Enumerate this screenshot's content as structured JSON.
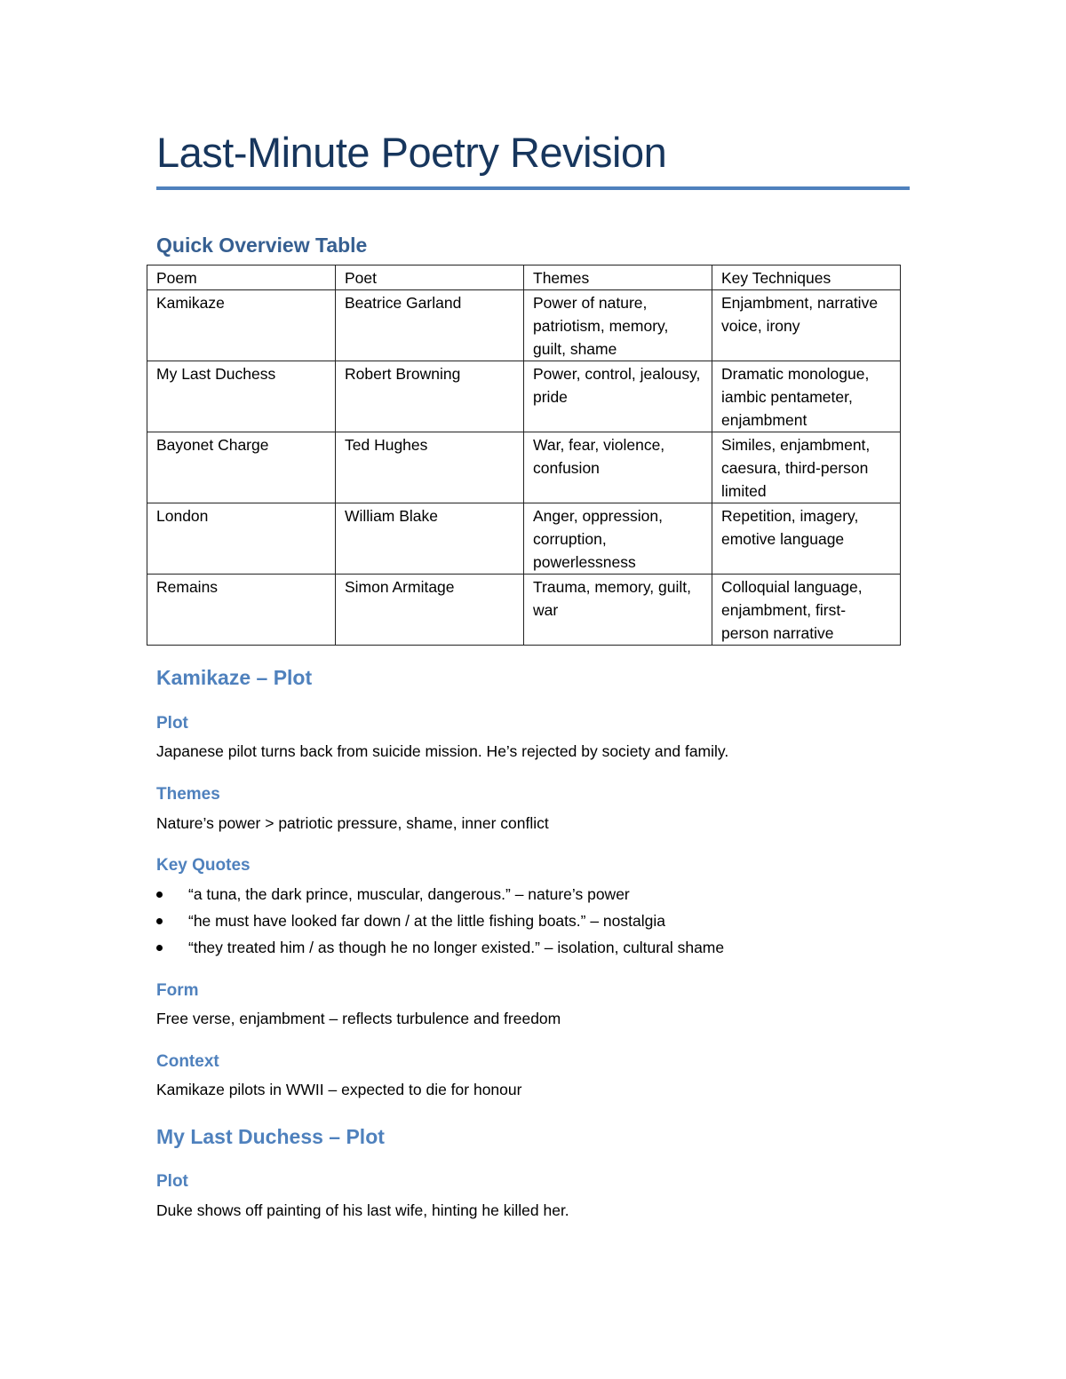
{
  "title": "Last-Minute Poetry Revision",
  "overview": {
    "heading": "Quick Overview Table",
    "columns": [
      "Poem",
      "Poet",
      "Themes",
      "Key Techniques"
    ],
    "rows": [
      [
        "Kamikaze",
        "Beatrice Garland",
        "Power of nature, patriotism, memory, guilt, shame",
        "Enjambment, narrative voice, irony"
      ],
      [
        "My Last Duchess",
        "Robert Browning",
        "Power, control, jealousy, pride",
        "Dramatic monologue, iambic pentameter, enjambment"
      ],
      [
        "Bayonet Charge",
        "Ted Hughes",
        "War, fear, violence, confusion",
        "Similes, enjambment, caesura, third-person limited"
      ],
      [
        "London",
        "William Blake",
        "Anger, oppression, corruption, powerlessness",
        "Repetition, imagery, emotive language"
      ],
      [
        "Remains",
        "Simon Armitage",
        "Trauma, memory, guilt, war",
        "Colloquial language, enjambment, first-person narrative"
      ]
    ]
  },
  "kamikaze": {
    "heading": "Kamikaze – Plot",
    "plot_label": "Plot",
    "plot": "Japanese pilot turns back from suicide mission. He’s rejected by society and family.",
    "themes_label": "Themes",
    "themes": "Nature’s power > patriotic pressure, shame, inner conflict",
    "quotes_label": "Key Quotes",
    "quotes": [
      "“a tuna, the dark prince, muscular, dangerous.” – nature’s power",
      "“he must have looked far down / at the little fishing boats.” – nostalgia",
      "“they treated him / as though he no longer existed.” – isolation, cultural shame"
    ],
    "form_label": "Form",
    "form": "Free verse, enjambment – reflects turbulence and freedom",
    "context_label": "Context",
    "context": "Kamikaze pilots in WWII – expected to die for honour"
  },
  "duchess": {
    "heading": "My Last Duchess – Plot",
    "plot_label": "Plot",
    "plot": "Duke shows off painting of his last wife, hinting he killed her."
  },
  "colors": {
    "title": "#17365D",
    "rule": "#4F81BD",
    "heading1": "#365F91",
    "heading2": "#4F81BD"
  }
}
